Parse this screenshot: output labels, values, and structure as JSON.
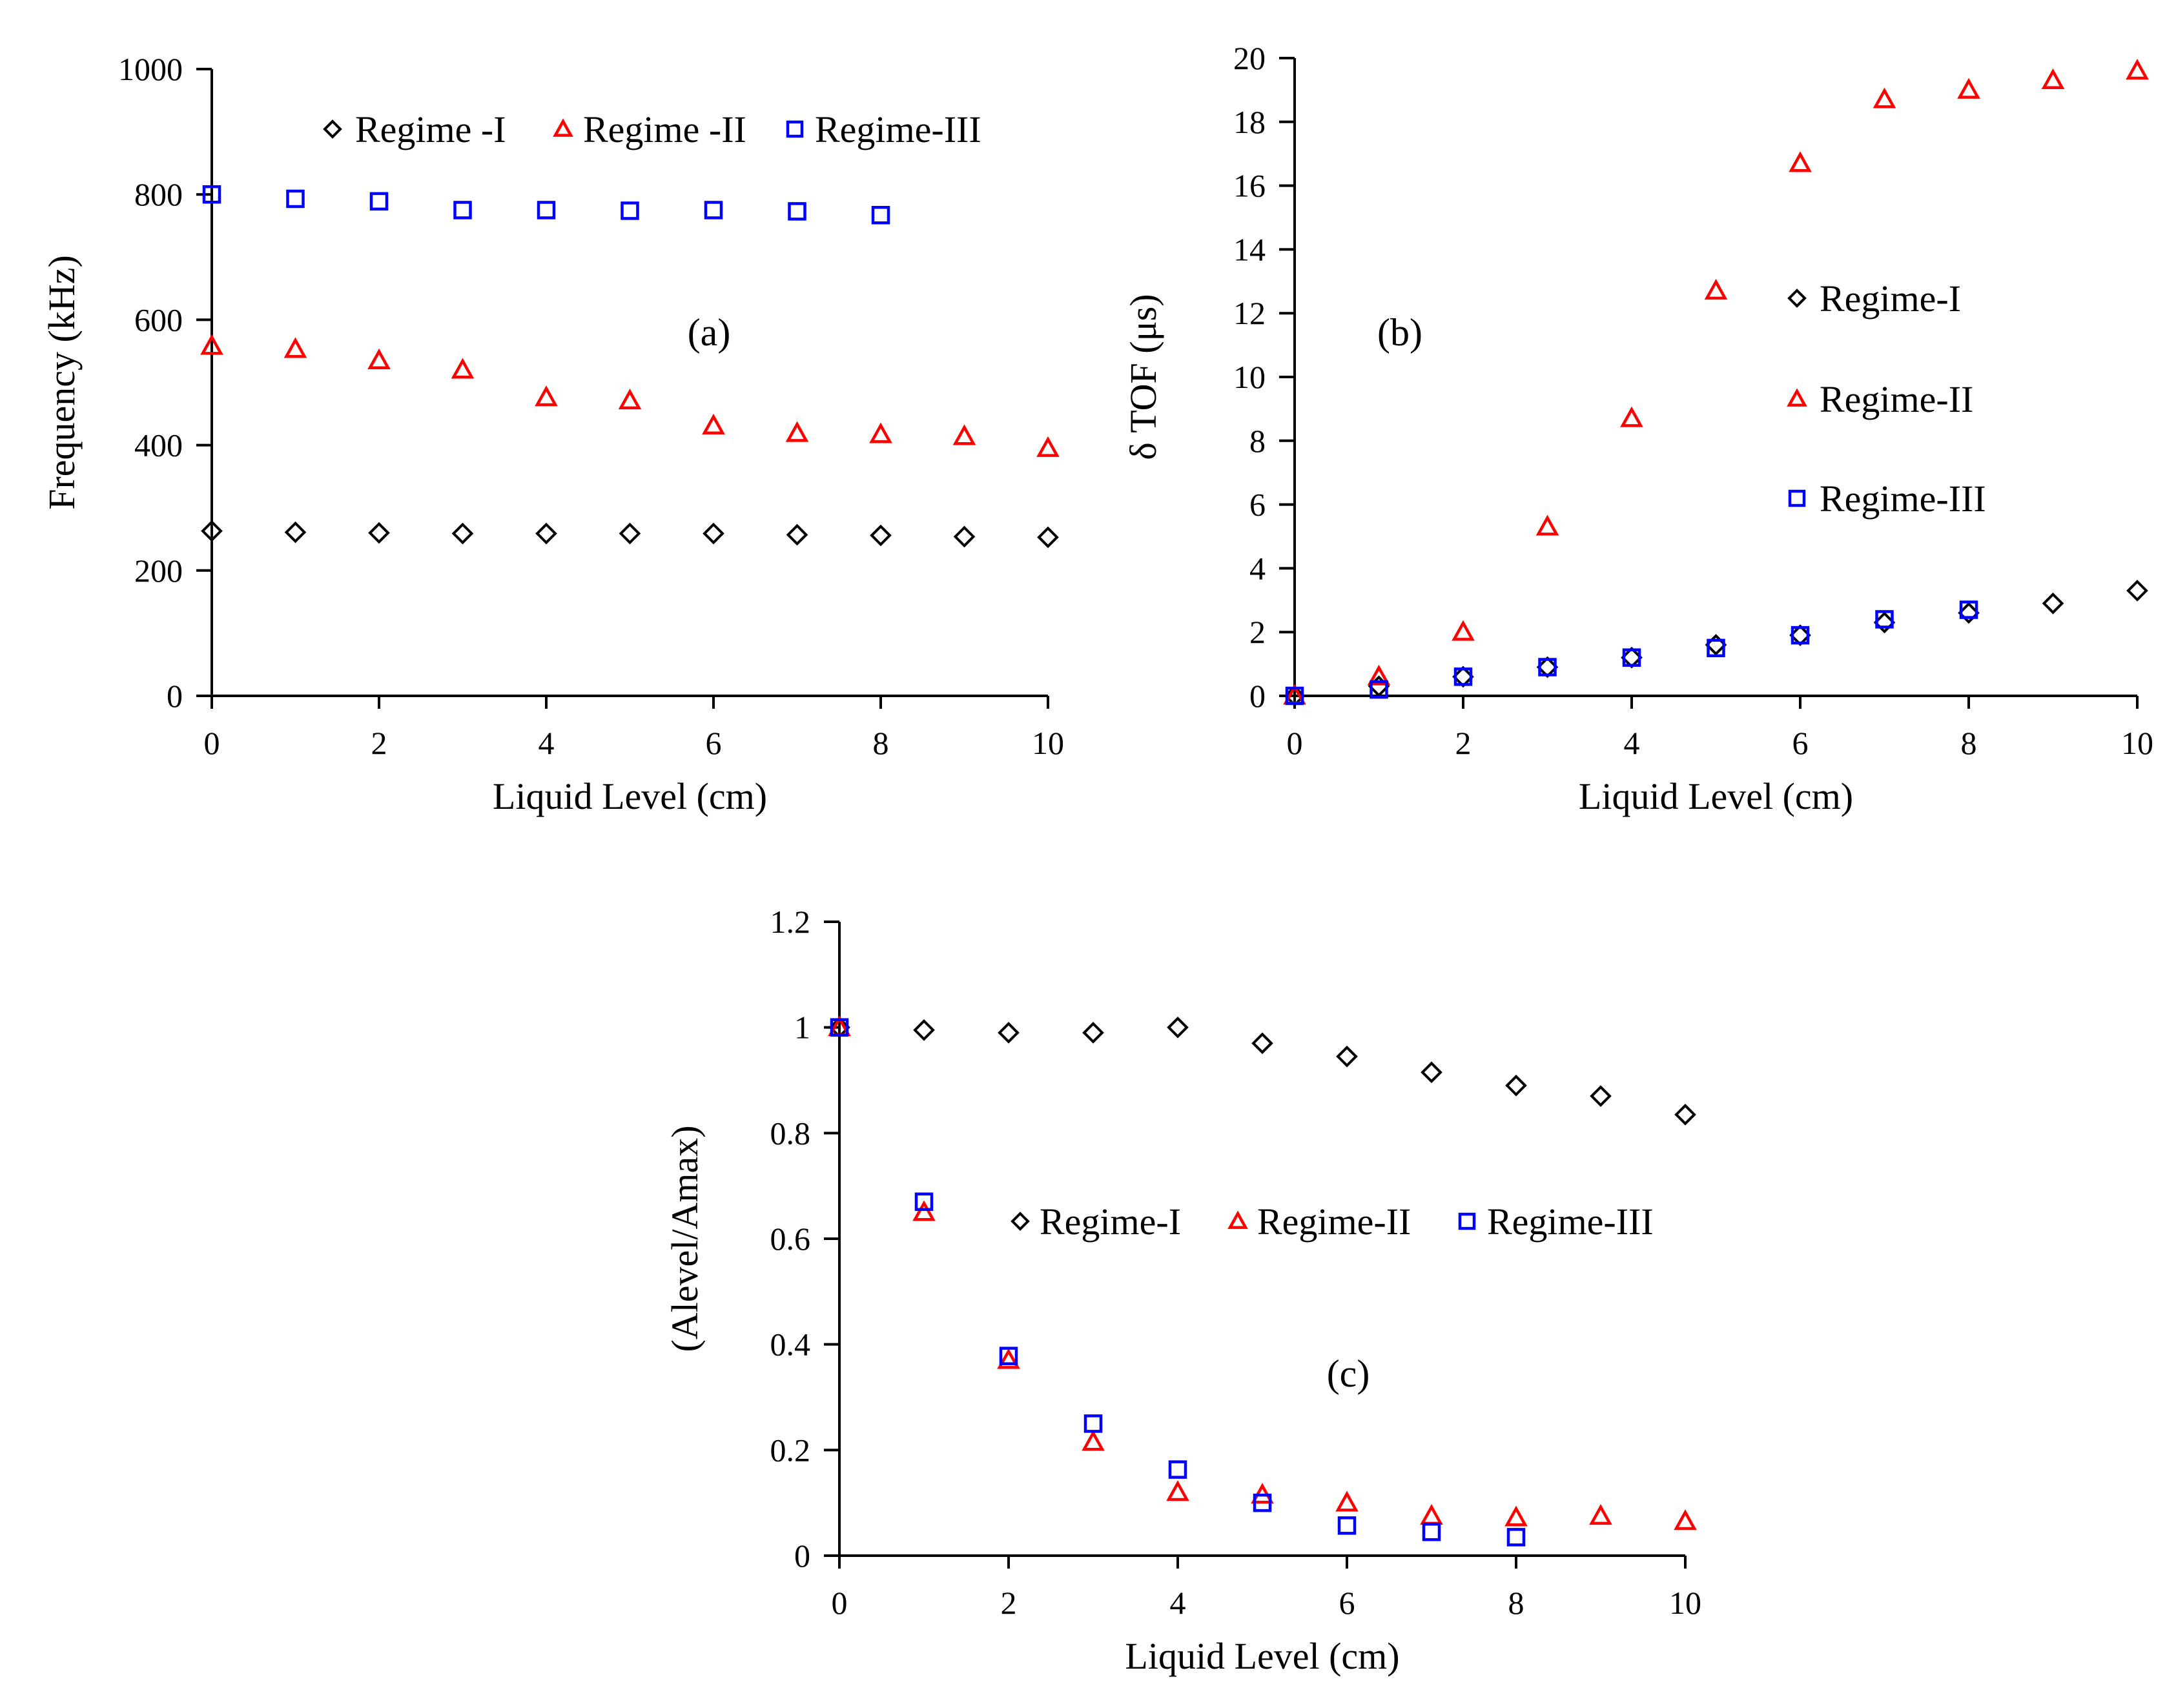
{
  "colors": {
    "regime1": "#000000",
    "regime2": "#ff0000",
    "regime3": "#0000ff"
  },
  "chart_data": [
    {
      "type": "scatter",
      "panel_label": "(a)",
      "xlabel": "Liquid Level (cm)",
      "ylabel": "Frequency (kHz)",
      "xlim": [
        0,
        10
      ],
      "ylim": [
        0,
        1000
      ],
      "xticks": [
        "0",
        "2",
        "4",
        "6",
        "8",
        "10"
      ],
      "yticks": [
        "0",
        "200",
        "400",
        "600",
        "800",
        "1000"
      ],
      "legend": [
        "Regime -I",
        "Regime -II",
        "Regime-III"
      ],
      "series": [
        {
          "name": "Regime -I",
          "marker": "diamond",
          "x": [
            0,
            1,
            2,
            3,
            4,
            5,
            6,
            7,
            8,
            9,
            10
          ],
          "y": [
            263,
            261,
            260,
            259,
            259,
            259,
            259,
            257,
            256,
            254,
            253
          ]
        },
        {
          "name": "Regime -II",
          "marker": "triangle",
          "x": [
            0,
            1,
            2,
            3,
            4,
            5,
            6,
            7,
            8,
            9,
            10
          ],
          "y": [
            558,
            553,
            535,
            520,
            476,
            471,
            431,
            419,
            417,
            414,
            395
          ]
        },
        {
          "name": "Regime-III",
          "marker": "square",
          "x": [
            0,
            1,
            2,
            3,
            4,
            5,
            6,
            7,
            8
          ],
          "y": [
            800,
            793,
            789,
            775,
            775,
            774,
            775,
            773,
            767
          ]
        }
      ]
    },
    {
      "type": "scatter",
      "panel_label": "(b)",
      "xlabel": "Liquid Level (cm)",
      "ylabel": "δ TOF (μs)",
      "xlim": [
        0,
        10
      ],
      "ylim": [
        0,
        20
      ],
      "xticks": [
        "0",
        "2",
        "4",
        "6",
        "8",
        "10"
      ],
      "yticks": [
        "0",
        "2",
        "4",
        "6",
        "8",
        "10",
        "12",
        "14",
        "16",
        "18",
        "20"
      ],
      "legend": [
        "Regime-I",
        "Regime-II",
        "Regime-III"
      ],
      "series": [
        {
          "name": "Regime-I",
          "marker": "diamond",
          "x": [
            0,
            1,
            2,
            3,
            4,
            5,
            6,
            7,
            8,
            9,
            10
          ],
          "y": [
            0,
            0.3,
            0.6,
            0.9,
            1.2,
            1.6,
            1.9,
            2.3,
            2.6,
            2.9,
            3.3
          ]
        },
        {
          "name": "Regime-II",
          "marker": "triangle",
          "x": [
            0,
            1,
            2,
            3,
            4,
            5,
            6,
            7,
            8,
            9,
            10
          ],
          "y": [
            0,
            0.6,
            2.0,
            5.3,
            8.7,
            12.7,
            16.7,
            18.7,
            19.0,
            19.3,
            19.6
          ]
        },
        {
          "name": "Regime-III",
          "marker": "square",
          "x": [
            0,
            1,
            2,
            3,
            4,
            5,
            6,
            7,
            8
          ],
          "y": [
            0,
            0.2,
            0.6,
            0.9,
            1.2,
            1.5,
            1.9,
            2.4,
            2.7
          ]
        }
      ]
    },
    {
      "type": "scatter",
      "panel_label": "(c)",
      "xlabel": "Liquid Level (cm)",
      "ylabel": "(Alevel/Amax)",
      "xlim": [
        0,
        10
      ],
      "ylim": [
        0,
        1.2
      ],
      "xticks": [
        "0",
        "2",
        "4",
        "6",
        "8",
        "10"
      ],
      "yticks": [
        "0",
        "0.2",
        "0.4",
        "0.6",
        "0.8",
        "1",
        "1.2"
      ],
      "legend": [
        "Regime-I",
        "Regime-II",
        "Regime-III"
      ],
      "series": [
        {
          "name": "Regime-I",
          "marker": "diamond",
          "x": [
            0,
            1,
            2,
            3,
            4,
            5,
            6,
            7,
            8,
            9,
            10
          ],
          "y": [
            1.0,
            0.995,
            0.99,
            0.99,
            1.0,
            0.97,
            0.945,
            0.915,
            0.89,
            0.87,
            0.835
          ]
        },
        {
          "name": "Regime-II",
          "marker": "triangle",
          "x": [
            0,
            1,
            2,
            3,
            4,
            5,
            6,
            7,
            8,
            9,
            10
          ],
          "y": [
            1.0,
            0.65,
            0.37,
            0.215,
            0.12,
            0.115,
            0.1,
            0.075,
            0.072,
            0.075,
            0.065
          ]
        },
        {
          "name": "Regime-III",
          "marker": "square",
          "x": [
            0,
            1,
            2,
            3,
            4,
            5,
            6,
            7,
            8
          ],
          "y": [
            1.0,
            0.67,
            0.378,
            0.25,
            0.163,
            0.1,
            0.057,
            0.045,
            0.035
          ]
        }
      ]
    }
  ]
}
